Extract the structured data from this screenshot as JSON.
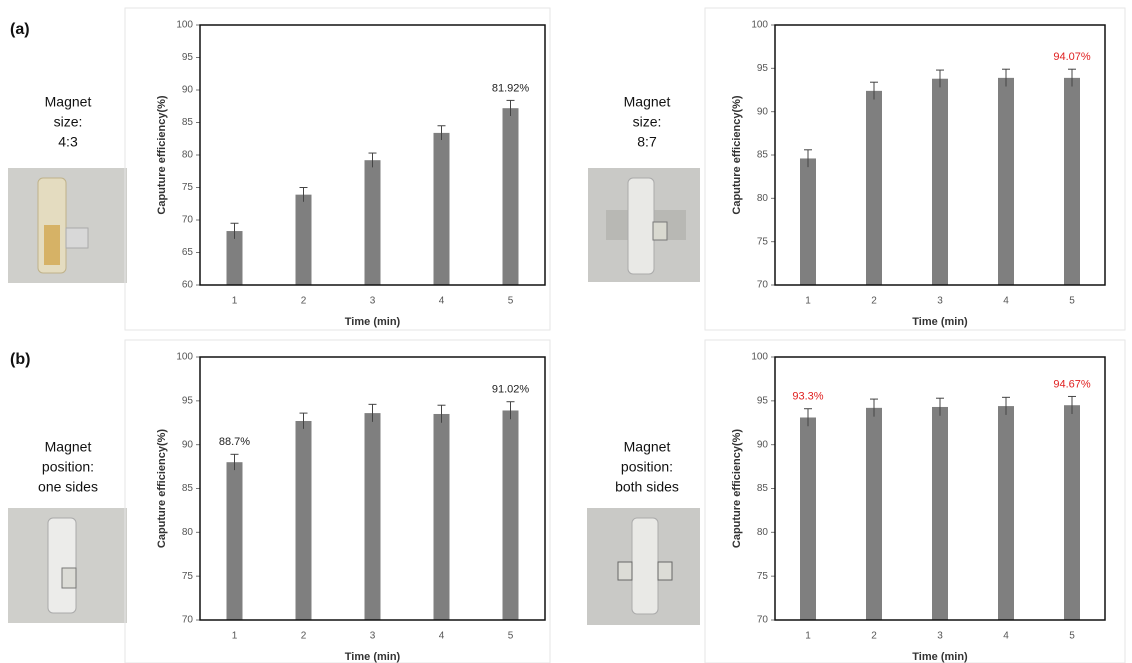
{
  "panel_labels": [
    "(a)",
    "(b)"
  ],
  "captions": [
    [
      "Magnet",
      "size:",
      "4:3"
    ],
    [
      "Magnet",
      "size:",
      "8:7"
    ],
    [
      "Magnet",
      "position:",
      "one sides"
    ],
    [
      "Magnet",
      "position:",
      "both sides"
    ]
  ],
  "chart_data": [
    {
      "type": "bar",
      "x_label": "Time (min)",
      "y_label": "Caputure efficiency(%)",
      "categories": [
        "1",
        "2",
        "3",
        "4",
        "5"
      ],
      "values": [
        68.3,
        73.9,
        79.2,
        83.4,
        87.2
      ],
      "errors": [
        1.2,
        1.1,
        1.1,
        1.1,
        1.2
      ],
      "color": "#7f7f7f",
      "ylim": [
        60,
        100
      ],
      "yticks": [
        60,
        65,
        70,
        75,
        80,
        85,
        90,
        95,
        100
      ],
      "annotations": [
        "81.92%"
      ],
      "annotation_color": "#222222"
    },
    {
      "type": "bar",
      "x_label": "Time (min)",
      "y_label": "Caputure efficiency(%)",
      "categories": [
        "1",
        "2",
        "3",
        "4",
        "5"
      ],
      "values": [
        84.6,
        92.4,
        93.8,
        93.9,
        93.9
      ],
      "errors": [
        1.0,
        1.0,
        1.0,
        1.0,
        1.0
      ],
      "color": "#7f7f7f",
      "ylim": [
        70,
        100
      ],
      "yticks": [
        70,
        75,
        80,
        85,
        90,
        95,
        100
      ],
      "annotations": [
        "94.07%"
      ],
      "annotation_color": "#e02020"
    },
    {
      "type": "bar",
      "x_label": "Time (min)",
      "y_label": "Caputure efficiency(%)",
      "categories": [
        "1",
        "2",
        "3",
        "4",
        "5"
      ],
      "values": [
        88.0,
        92.7,
        93.6,
        93.5,
        93.9
      ],
      "errors": [
        0.9,
        0.9,
        1.0,
        1.0,
        1.0
      ],
      "color": "#7f7f7f",
      "ylim": [
        70,
        100
      ],
      "yticks": [
        70,
        75,
        80,
        85,
        90,
        95,
        100
      ],
      "annotations": [
        "88.7%",
        "91.02%"
      ],
      "annotation_color": "#222222"
    },
    {
      "type": "bar",
      "x_label": "Time (min)",
      "y_label": "Caputure efficiency(%)",
      "categories": [
        "1",
        "2",
        "3",
        "4",
        "5"
      ],
      "values": [
        93.1,
        94.2,
        94.3,
        94.4,
        94.5
      ],
      "errors": [
        1.0,
        1.0,
        1.0,
        1.0,
        1.0
      ],
      "color": "#7f7f7f",
      "ylim": [
        70,
        100
      ],
      "yticks": [
        70,
        75,
        80,
        85,
        90,
        95,
        100
      ],
      "annotations": [
        "93.3%",
        "94.67%"
      ],
      "annotation_color": "#e02020"
    }
  ]
}
